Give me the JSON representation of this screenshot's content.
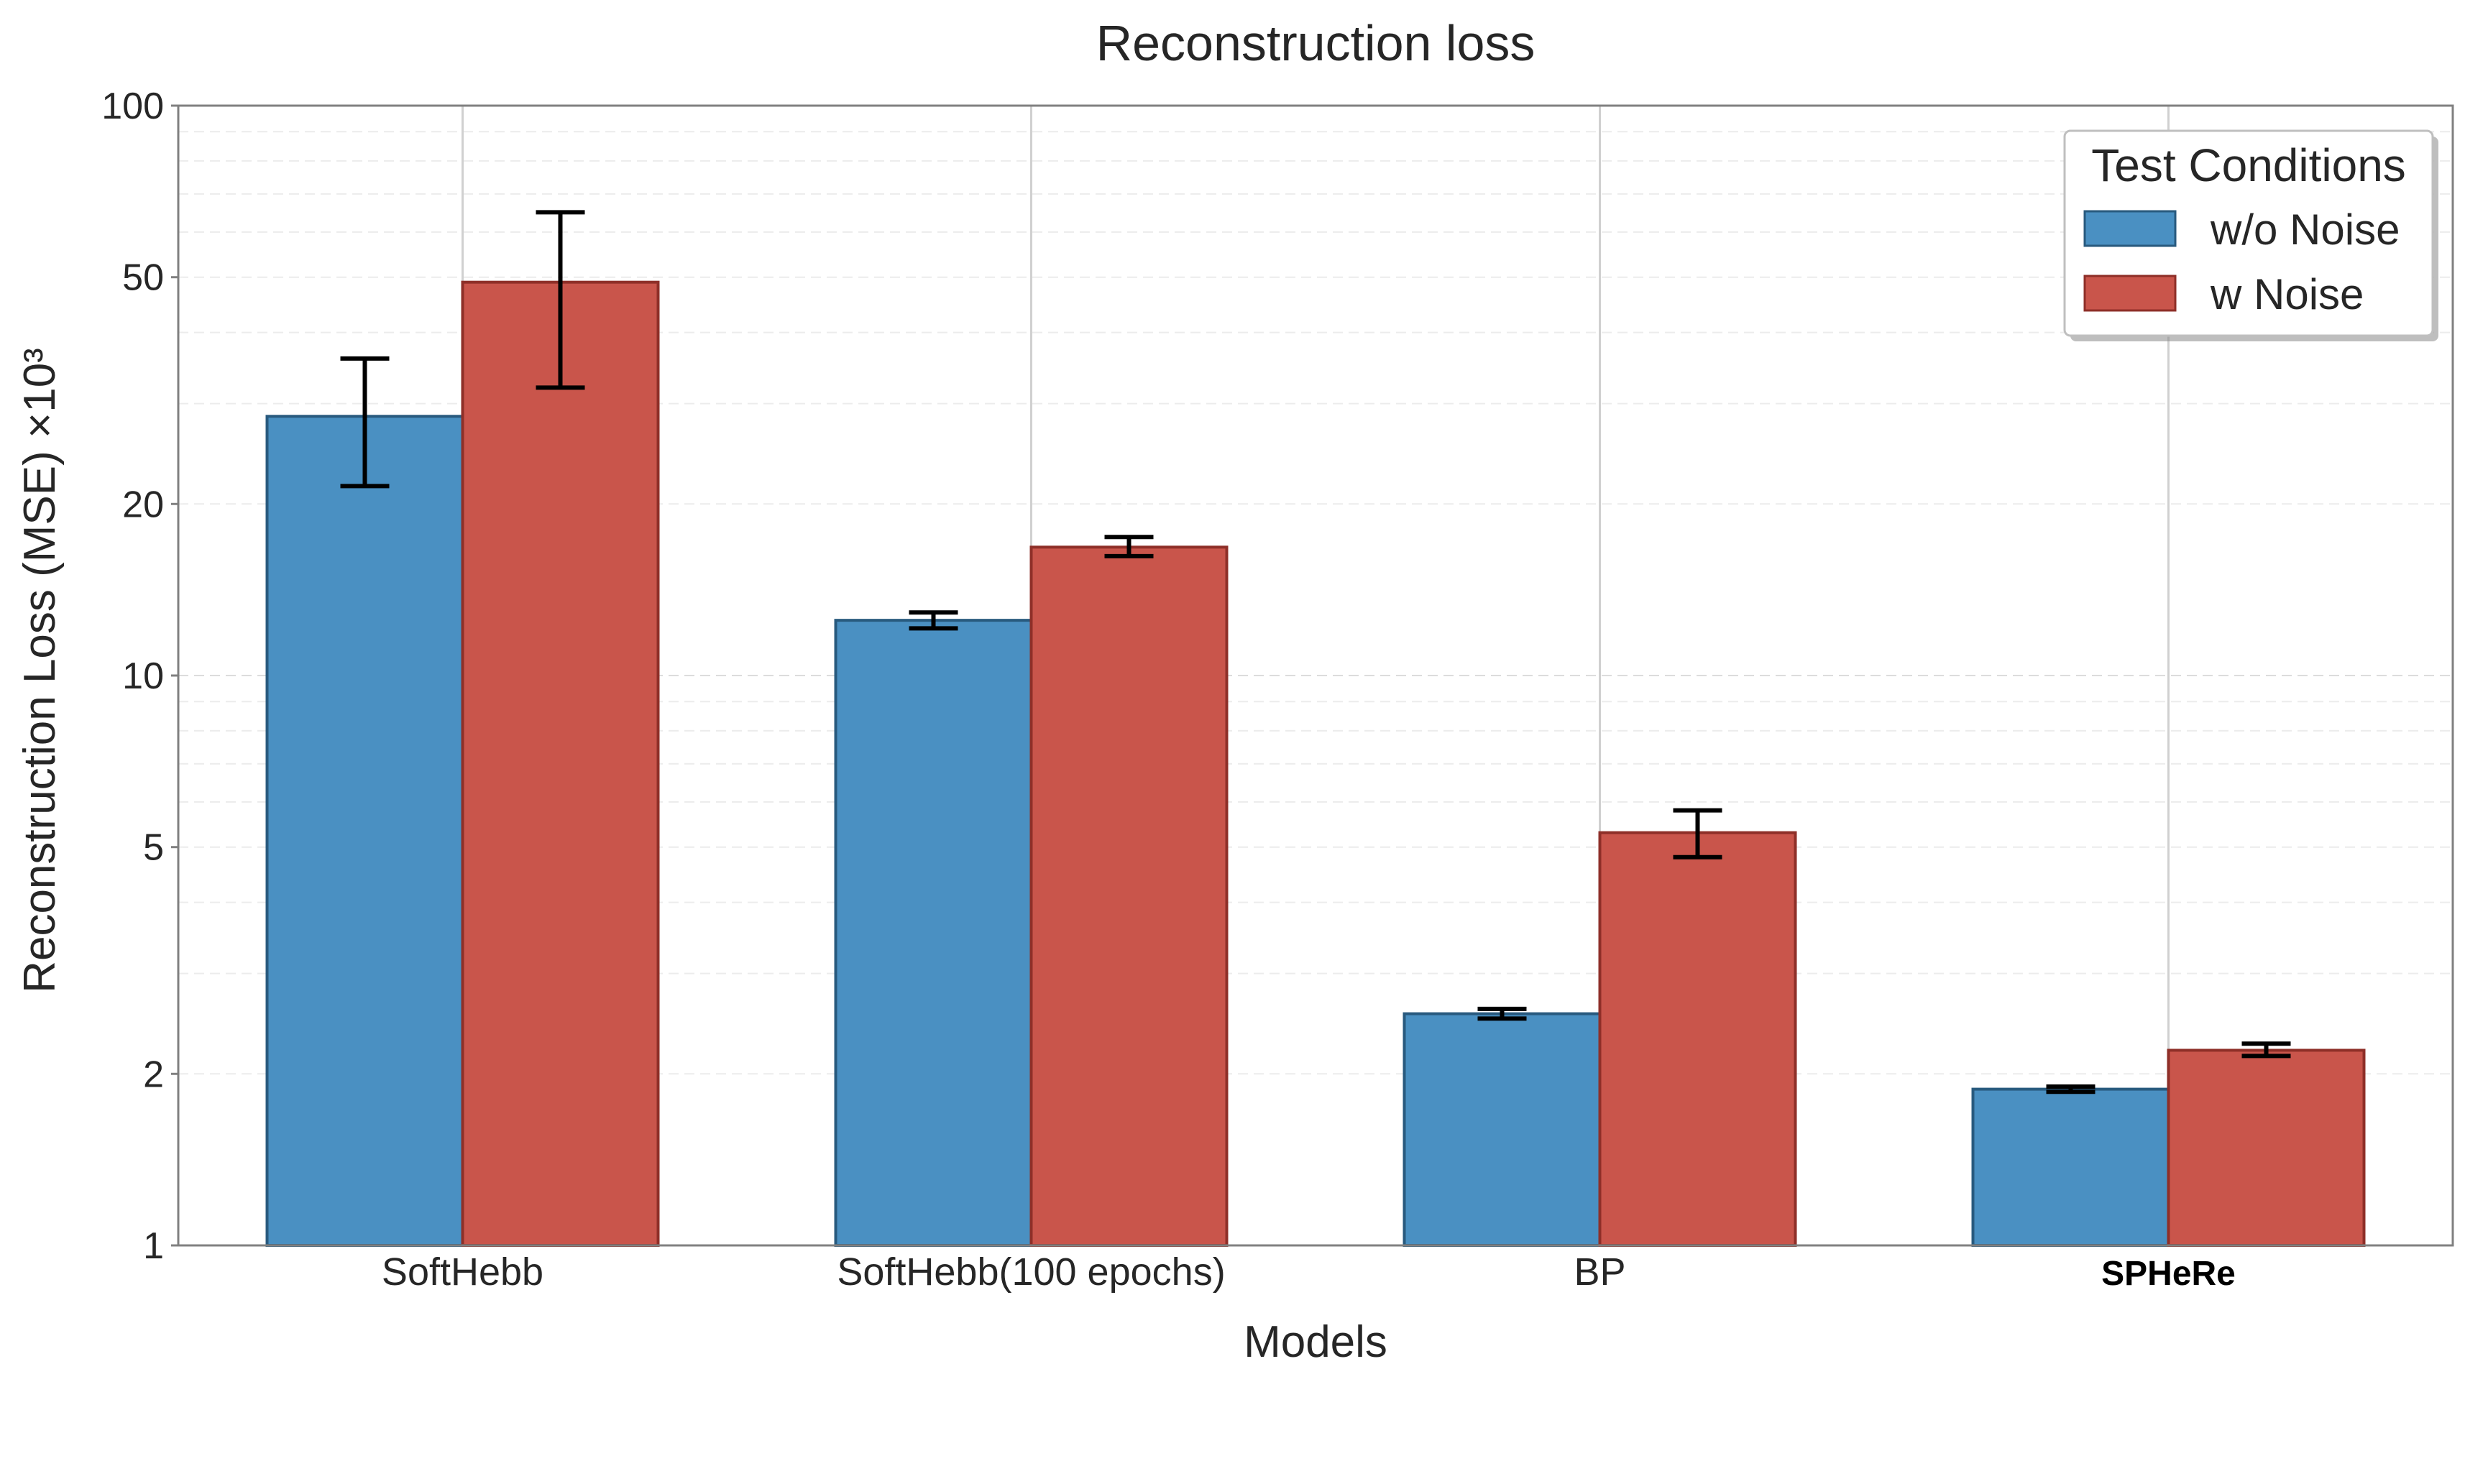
{
  "chart_data": {
    "type": "bar",
    "title": "Reconstruction loss",
    "xlabel": "Models",
    "ylabel": "Reconstruction Loss (MSE) ×10³",
    "yscale": "log",
    "ylim": [
      1,
      100
    ],
    "yticks": [
      1,
      2,
      5,
      10,
      20,
      50,
      100
    ],
    "categories": [
      "SoftHebb",
      "SoftHebb(100 epochs)",
      "BP",
      "SPHeRe"
    ],
    "bold_categories": [
      "SPHeRe"
    ],
    "legend": {
      "title": "Test Conditions",
      "position": "top-right"
    },
    "series": [
      {
        "name": "w/o Noise",
        "color": "#4a90c2",
        "edge": "#285a7e",
        "values": [
          28.5,
          12.5,
          2.55,
          1.88
        ],
        "err_low": [
          21.5,
          12.1,
          2.5,
          1.86
        ],
        "err_high": [
          36.0,
          12.9,
          2.6,
          1.9
        ]
      },
      {
        "name": "w Noise",
        "color": "#c9554b",
        "edge": "#8e2f28",
        "values": [
          49.0,
          16.8,
          5.3,
          2.2
        ],
        "err_low": [
          32.0,
          16.2,
          4.8,
          2.15
        ],
        "err_high": [
          65.0,
          17.5,
          5.8,
          2.26
        ]
      }
    ],
    "grid": true
  }
}
